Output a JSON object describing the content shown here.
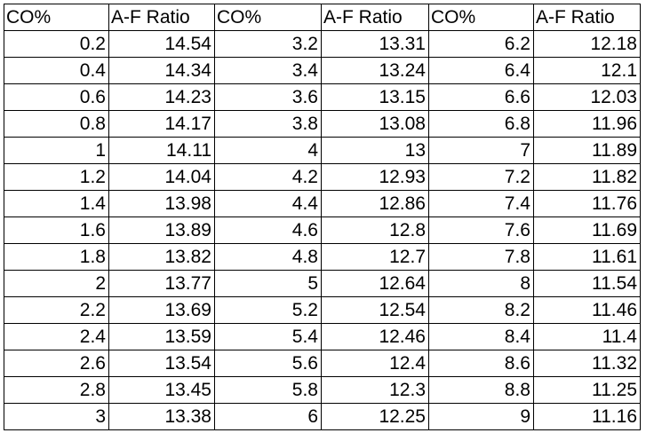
{
  "table": {
    "headers": [
      "CO%",
      "A-F Ratio",
      "CO%",
      "A-F Ratio",
      "CO%",
      "A-F Ratio"
    ],
    "rows": [
      [
        "0.2",
        "14.54",
        "3.2",
        "13.31",
        "6.2",
        "12.18"
      ],
      [
        "0.4",
        "14.34",
        "3.4",
        "13.24",
        "6.4",
        "12.1"
      ],
      [
        "0.6",
        "14.23",
        "3.6",
        "13.15",
        "6.6",
        "12.03"
      ],
      [
        "0.8",
        "14.17",
        "3.8",
        "13.08",
        "6.8",
        "11.96"
      ],
      [
        "1",
        "14.11",
        "4",
        "13",
        "7",
        "11.89"
      ],
      [
        "1.2",
        "14.04",
        "4.2",
        "12.93",
        "7.2",
        "11.82"
      ],
      [
        "1.4",
        "13.98",
        "4.4",
        "12.86",
        "7.4",
        "11.76"
      ],
      [
        "1.6",
        "13.89",
        "4.6",
        "12.8",
        "7.6",
        "11.69"
      ],
      [
        "1.8",
        "13.82",
        "4.8",
        "12.7",
        "7.8",
        "11.61"
      ],
      [
        "2",
        "13.77",
        "5",
        "12.64",
        "8",
        "11.54"
      ],
      [
        "2.2",
        "13.69",
        "5.2",
        "12.54",
        "8.2",
        "11.46"
      ],
      [
        "2.4",
        "13.59",
        "5.4",
        "12.46",
        "8.4",
        "11.4"
      ],
      [
        "2.6",
        "13.54",
        "5.6",
        "12.4",
        "8.6",
        "11.32"
      ],
      [
        "2.8",
        "13.45",
        "5.8",
        "12.3",
        "8.8",
        "11.25"
      ],
      [
        "3",
        "13.38",
        "6",
        "12.25",
        "9",
        "11.16"
      ]
    ]
  }
}
